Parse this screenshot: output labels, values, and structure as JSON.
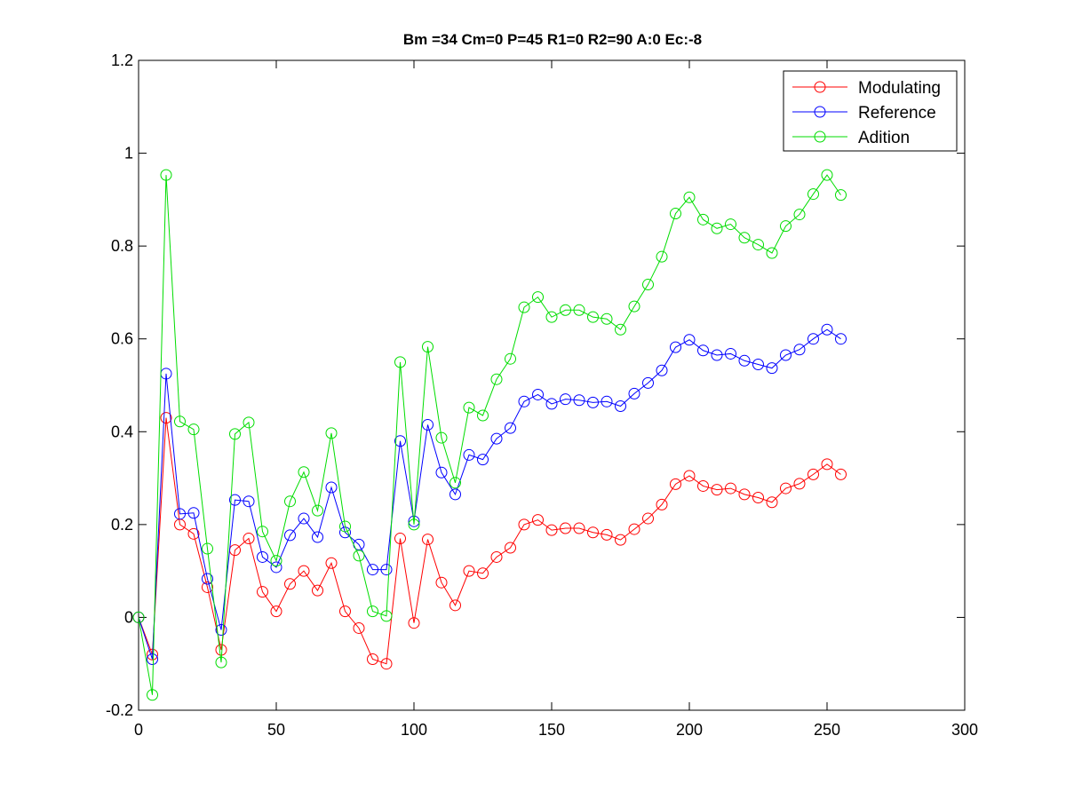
{
  "chart_data": {
    "type": "line",
    "title": "Bm =34  Cm=0  P=45  R1=0  R2=90  A:0  Ec:-8",
    "xlabel": "",
    "ylabel": "",
    "xlim": [
      0,
      300
    ],
    "ylim": [
      -0.2,
      1.2
    ],
    "xticks": [
      0,
      50,
      100,
      150,
      200,
      250,
      300
    ],
    "yticks": [
      -0.2,
      0,
      0.2,
      0.4,
      0.6,
      0.8,
      1,
      1.2
    ],
    "xtick_labels": [
      "0",
      "50",
      "100",
      "150",
      "200",
      "250",
      "300"
    ],
    "ytick_labels": [
      "-0.2",
      "0",
      "0.2",
      "0.4",
      "0.6",
      "0.8",
      "1",
      "1.2"
    ],
    "grid": false,
    "legend_position": "top-right",
    "marker": "circle",
    "x": [
      0,
      5,
      10,
      15,
      20,
      25,
      30,
      35,
      40,
      45,
      50,
      55,
      60,
      65,
      70,
      75,
      80,
      85,
      90,
      95,
      100,
      105,
      110,
      115,
      120,
      125,
      130,
      135,
      140,
      145,
      150,
      155,
      160,
      165,
      170,
      175,
      180,
      185,
      190,
      195,
      200,
      205,
      210,
      215,
      220,
      225,
      230,
      235,
      240,
      245,
      250,
      255
    ],
    "series": [
      {
        "name": "Modulating",
        "color": "#ff0000",
        "values": [
          0,
          -0.08,
          0.43,
          0.2,
          0.18,
          0.065,
          -0.07,
          0.145,
          0.17,
          0.055,
          0.013,
          0.072,
          0.1,
          0.058,
          0.117,
          0.013,
          -0.023,
          -0.09,
          -0.1,
          0.17,
          -0.012,
          0.168,
          0.075,
          0.026,
          0.1,
          0.095,
          0.13,
          0.15,
          0.2,
          0.21,
          0.188,
          0.192,
          0.192,
          0.183,
          0.178,
          0.167,
          0.19,
          0.213,
          0.243,
          0.287,
          0.305,
          0.283,
          0.275,
          0.278,
          0.265,
          0.258,
          0.248,
          0.278,
          0.288,
          0.308,
          0.33,
          0.308
        ]
      },
      {
        "name": "Reference",
        "color": "#0000ff",
        "values": [
          0,
          -0.09,
          0.525,
          0.223,
          0.225,
          0.083,
          -0.027,
          0.253,
          0.25,
          0.13,
          0.108,
          0.177,
          0.213,
          0.173,
          0.28,
          0.183,
          0.157,
          0.103,
          0.103,
          0.38,
          0.207,
          0.415,
          0.312,
          0.265,
          0.35,
          0.34,
          0.385,
          0.408,
          0.465,
          0.48,
          0.46,
          0.47,
          0.468,
          0.463,
          0.465,
          0.455,
          0.482,
          0.505,
          0.532,
          0.582,
          0.598,
          0.575,
          0.565,
          0.568,
          0.553,
          0.545,
          0.537,
          0.565,
          0.577,
          0.6,
          0.62,
          0.6
        ]
      },
      {
        "name": "Adition",
        "color": "#00dd00",
        "values": [
          0,
          -0.167,
          0.953,
          0.422,
          0.405,
          0.148,
          -0.097,
          0.395,
          0.42,
          0.185,
          0.122,
          0.25,
          0.313,
          0.23,
          0.397,
          0.196,
          0.133,
          0.013,
          0.003,
          0.55,
          0.2,
          0.583,
          0.387,
          0.29,
          0.452,
          0.435,
          0.513,
          0.557,
          0.668,
          0.69,
          0.647,
          0.662,
          0.662,
          0.647,
          0.643,
          0.62,
          0.67,
          0.717,
          0.777,
          0.87,
          0.905,
          0.857,
          0.838,
          0.847,
          0.818,
          0.803,
          0.785,
          0.843,
          0.868,
          0.912,
          0.953,
          0.91
        ]
      }
    ]
  }
}
